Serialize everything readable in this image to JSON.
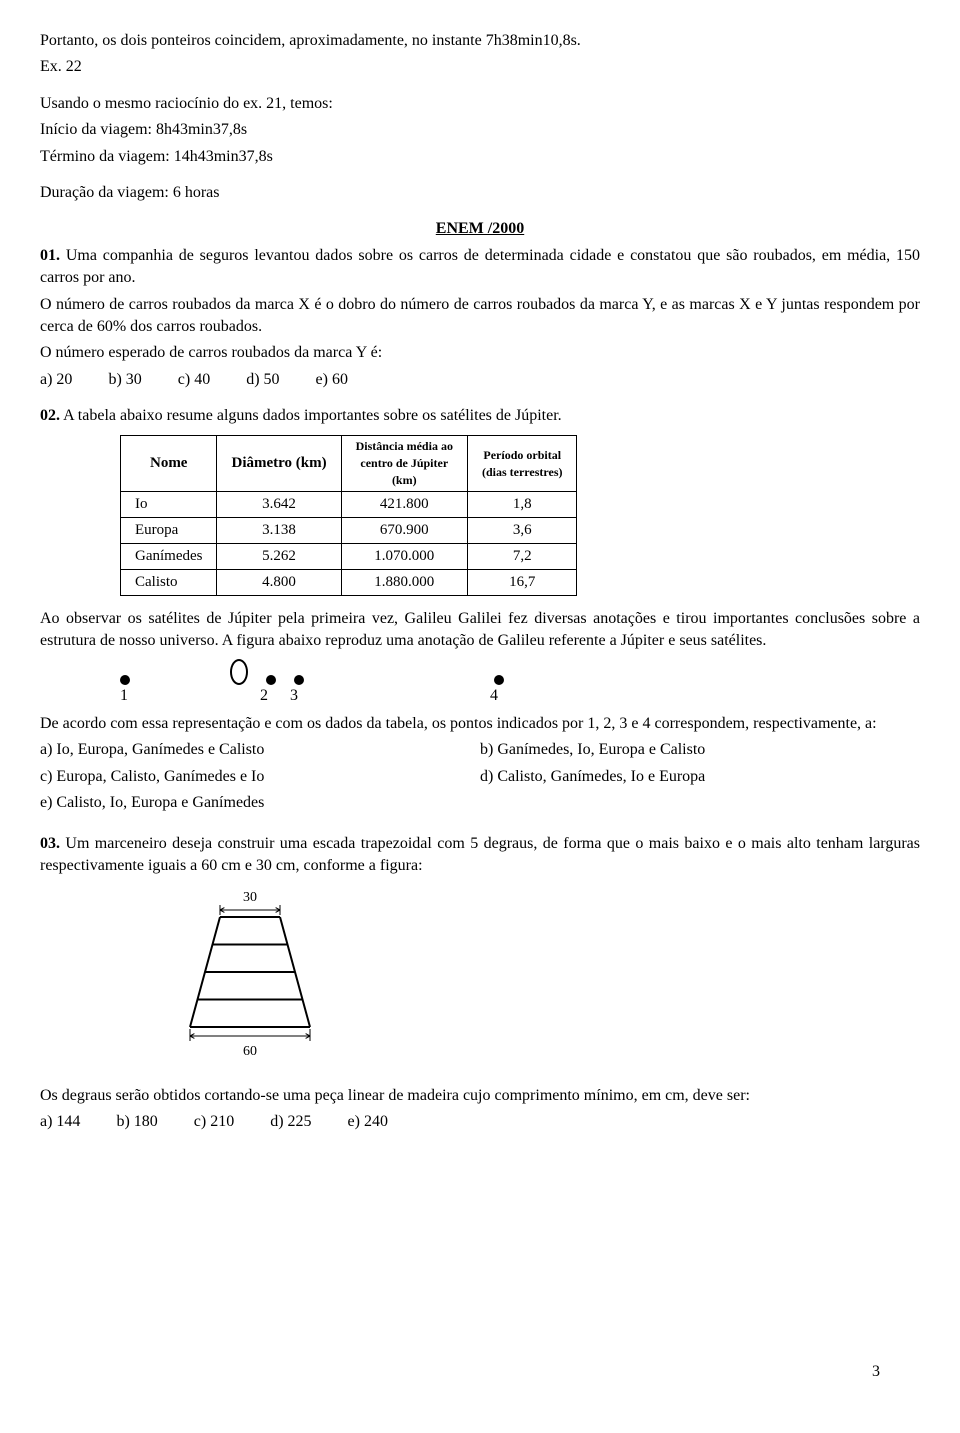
{
  "intro": {
    "line1": "Portanto, os dois ponteiros coincidem, aproximadamente, no instante 7h38min10,8s.",
    "line2": "Ex. 22",
    "line3": "Usando o mesmo raciocínio do ex. 21, temos:",
    "line4": "Início da viagem: 8h43min37,8s",
    "line5": "Término da viagem: 14h43min37,8s",
    "line6": "Duração da viagem: 6 horas"
  },
  "section_title": "ENEM /2000",
  "q01": {
    "num": "01.",
    "p1": " Uma companhia de seguros levantou dados sobre os carros de determinada cidade e constatou que são roubados, em média, 150 carros por ano.",
    "p2": "O número de carros roubados da marca X é o dobro do número de carros roubados da marca Y, e as marcas X e Y juntas respondem por cerca de 60% dos carros roubados.",
    "p3": "O número esperado de carros roubados da marca Y é:",
    "opts": {
      "a": "a) 20",
      "b": "b) 30",
      "c": "c) 40",
      "d": "d) 50",
      "e": "e) 60"
    }
  },
  "q02": {
    "num": "02.",
    "p1": " A tabela abaixo resume alguns dados importantes sobre os satélites de Júpiter.",
    "table": {
      "headers": {
        "c1": "Nome",
        "c2": "Diâmetro (km)",
        "c3_a": "Distância média ao",
        "c3_b": "centro de Júpiter",
        "c3_c": "(km)",
        "c4_a": "Período orbital",
        "c4_b": "(dias terrestres)"
      },
      "rows": [
        {
          "c1": "Io",
          "c2": "3.642",
          "c3": "421.800",
          "c4": "1,8"
        },
        {
          "c1": "Europa",
          "c2": "3.138",
          "c3": "670.900",
          "c4": "3,6"
        },
        {
          "c1": "Ganímedes",
          "c2": "5.262",
          "c3": "1.070.000",
          "c4": "7,2"
        },
        {
          "c1": "Calisto",
          "c2": "4.800",
          "c3": "1.880.000",
          "c4": "16,7"
        }
      ]
    },
    "p2": "Ao observar os satélites de Júpiter pela primeira vez, Galileu Galilei fez diversas anotações e tirou importantes conclusões sobre a estrutura de nosso universo. A figura abaixo reproduz uma anotação de Galileu referente a Júpiter e seus satélites.",
    "diagram": {
      "labels": {
        "n1": "1",
        "n2": "2",
        "n3": "3",
        "n4": "4"
      },
      "spacing": {
        "before_oval": 100,
        "after_oval": 18,
        "d2_d3": 18,
        "d3_d4": 190
      }
    },
    "p3": "De acordo com essa representação e com os dados da tabela, os pontos indicados por 1, 2, 3 e 4 correspondem, respectivamente, a:",
    "opts": {
      "a": "a) Io, Europa, Ganímedes e Calisto",
      "b": "b) Ganímedes, Io, Europa e Calisto",
      "c": "c) Europa, Calisto, Ganímedes e Io",
      "d": "d) Calisto, Ganímedes, Io e Europa",
      "e": "e) Calisto, Io, Europa e Ganímedes"
    }
  },
  "q03": {
    "num": "03.",
    "p1": " Um marceneiro deseja construir uma escada trapezoidal com 5 degraus, de forma que o mais baixo e o mais alto tenham larguras respectivamente iguais a 60 cm e 30 cm, conforme a figura:",
    "ladder": {
      "top_label": "30",
      "bottom_label": "60",
      "top_width": 60,
      "bottom_width": 120,
      "height": 110,
      "steps": 5
    },
    "p2": "Os degraus serão obtidos cortando-se uma peça linear de madeira cujo comprimento mínimo, em cm, deve ser:",
    "opts": {
      "a": "a) 144",
      "b": "b) 180",
      "c": "c) 210",
      "d": "d) 225",
      "e": "e) 240"
    }
  },
  "page_number": "3"
}
